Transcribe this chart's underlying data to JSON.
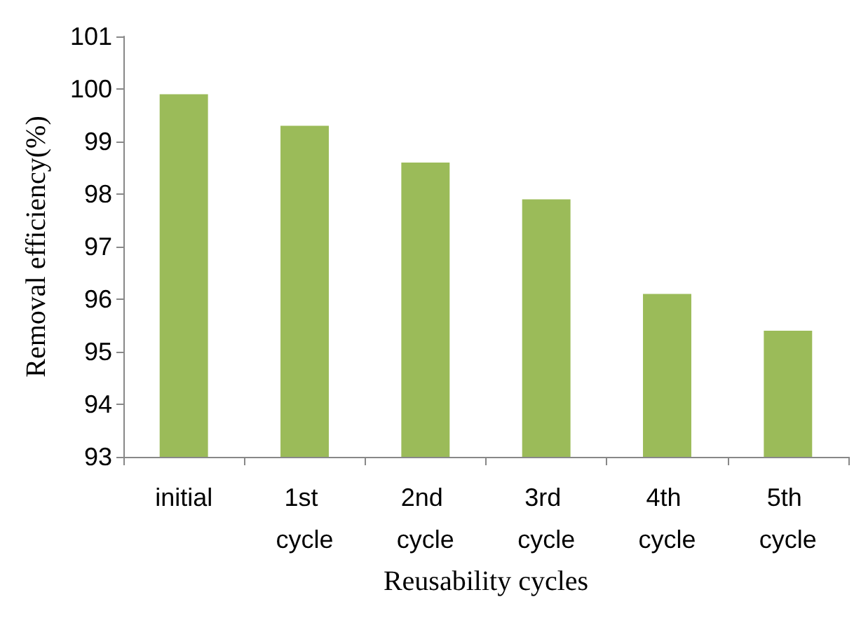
{
  "chart_data": {
    "type": "bar",
    "xlabel": "Reusability cycles",
    "ylabel": "Removal efficiency(%)",
    "categories": [
      "initial",
      "1st cycle",
      "2nd cycle",
      "3rd cycle",
      "4th cycle",
      "5th cycle"
    ],
    "values": [
      99.9,
      99.3,
      98.6,
      97.9,
      96.1,
      95.4
    ],
    "color": "#9bbb59",
    "ylim": [
      93,
      101
    ],
    "yticks": [
      93,
      94,
      95,
      96,
      97,
      98,
      99,
      100,
      101
    ],
    "grid": false
  }
}
